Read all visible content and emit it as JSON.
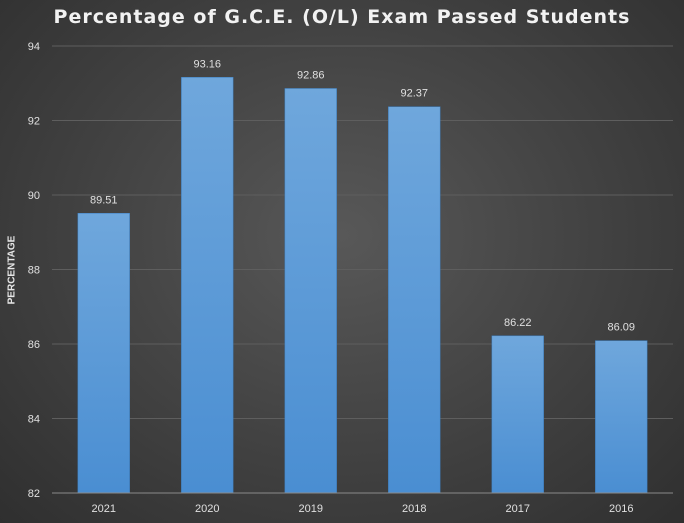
{
  "chart_data": {
    "type": "bar",
    "title": "Percentage of G.C.E. (O/L) Exam Passed Students",
    "xlabel": "",
    "ylabel": "PERCENTAGE",
    "categories": [
      "2021",
      "2020",
      "2019",
      "2018",
      "2017",
      "2016"
    ],
    "values": [
      89.51,
      93.16,
      92.86,
      92.37,
      86.22,
      86.09
    ],
    "data_labels": [
      "89.51",
      "93.16",
      "92.86",
      "92.37",
      "86.22",
      "86.09"
    ],
    "ylim": [
      82,
      94
    ],
    "yticks": [
      82,
      84,
      86,
      88,
      90,
      92,
      94
    ],
    "grid": true,
    "legend": "none",
    "colors": {
      "bar": "#5b9bd5",
      "bar_top": "#6fa7dc",
      "gridline": "#5e5e5e",
      "text": "#e0e0e0"
    }
  }
}
